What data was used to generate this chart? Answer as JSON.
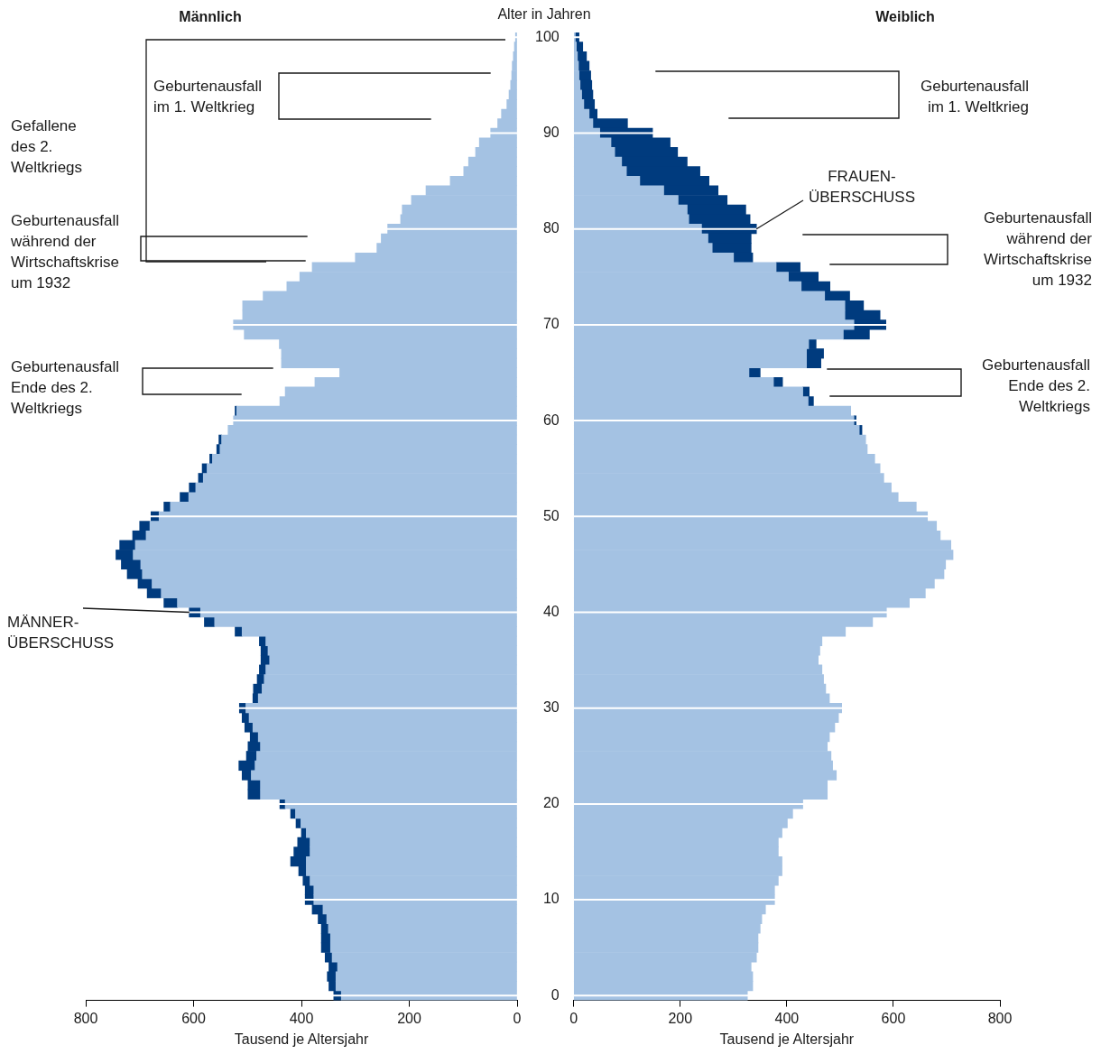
{
  "chart_data": [
    {
      "type": "bar",
      "orientation": "horizontal",
      "stacked": true,
      "title": "Männlich",
      "xlabel": "Tausend je Altersjahr",
      "tick_labels": "x",
      "grid": "y",
      "xlim": [
        800,
        0
      ],
      "xticks": [
        800,
        600,
        400,
        200,
        0
      ],
      "categories": [
        "100",
        null,
        null,
        null,
        null,
        null,
        null,
        null,
        null,
        null,
        "90",
        null,
        null,
        null,
        null,
        null,
        null,
        null,
        null,
        null,
        "80",
        null,
        null,
        null,
        null,
        null,
        null,
        null,
        null,
        null,
        "70",
        null,
        null,
        null,
        null,
        null,
        null,
        null,
        null,
        null,
        "60",
        null,
        null,
        null,
        null,
        null,
        null,
        null,
        null,
        null,
        "50",
        null,
        null,
        null,
        null,
        null,
        null,
        null,
        null,
        null,
        "40",
        null,
        null,
        null,
        null,
        null,
        null,
        null,
        null,
        null,
        "30",
        null,
        null,
        null,
        null,
        null,
        null,
        null,
        null,
        null,
        "20",
        null,
        null,
        null,
        null,
        null,
        null,
        null,
        null,
        null,
        "10",
        null,
        null,
        null,
        null,
        null,
        null,
        null,
        null,
        null,
        "0"
      ],
      "series": [
        {
          "color": "#a4c2e3",
          "values": [
            3,
            5,
            7,
            9,
            10,
            12,
            15,
            19,
            29,
            36,
            49,
            70,
            77,
            90,
            99,
            124,
            169,
            196,
            213,
            216,
            240,
            252,
            260,
            300,
            380,
            403,
            427,
            471,
            509,
            509,
            526,
            506,
            441,
            437,
            437,
            329,
            375,
            430,
            440,
            520,
            526,
            536,
            548,
            551,
            565,
            575,
            582,
            596,
            609,
            643,
            664,
            681,
            688,
            708,
            712,
            698,
            695,
            677,
            660,
            630,
            587,
            561,
            510,
            466,
            462,
            459,
            466,
            469,
            473,
            480,
            503,
            497,
            490,
            480,
            476,
            483,
            486,
            493,
            476,
            476,
            430,
            411,
            401,
            391,
            384,
            384,
            391,
            391,
            384,
            377,
            377,
            360,
            353,
            350,
            346,
            346,
            343,
            333,
            336,
            336,
            326
          ]
        },
        {
          "color": "#003b7e",
          "values": [
            null,
            null,
            null,
            null,
            null,
            null,
            null,
            null,
            null,
            null,
            null,
            null,
            null,
            null,
            null,
            null,
            null,
            null,
            null,
            null,
            null,
            null,
            null,
            null,
            null,
            null,
            null,
            null,
            null,
            null,
            null,
            null,
            null,
            null,
            null,
            null,
            null,
            null,
            null,
            3,
            null,
            null,
            5,
            6,
            5,
            9,
            9,
            12,
            16,
            12,
            15,
            19,
            25,
            29,
            32,
            36,
            28,
            26,
            26,
            25,
            21,
            19,
            13,
            12,
            13,
            16,
            12,
            13,
            16,
            10,
            12,
            13,
            15,
            15,
            23,
            19,
            30,
            17,
            23,
            23,
            10,
            9,
            9,
            9,
            23,
            30,
            29,
            14,
            13,
            16,
            16,
            20,
            16,
            13,
            17,
            17,
            13,
            16,
            16,
            13,
            14
          ]
        }
      ],
      "annotations": [
        "Gefallene des 2. Weltkriegs",
        "Geburtenausfall im 1. Weltkrieg",
        "Geburtenausfall während der Wirtschaftskrise um 1932",
        "Geburtenausfall Ende des 2. Weltkriegs",
        {
          "text": "MÄNNER-ÜBERSCHUSS",
          "x": 608,
          "y": "40"
        }
      ]
    },
    {
      "type": "bar",
      "orientation": "horizontal",
      "stacked": true,
      "title": "Weiblich",
      "xlabel": "Tausend je Altersjahr",
      "ylabel": "Alter in Jahren",
      "grid": "y",
      "xlim": [
        0,
        800
      ],
      "xticks": [
        0,
        200,
        400,
        600,
        800
      ],
      "categories": [
        "100",
        null,
        null,
        null,
        null,
        null,
        null,
        null,
        null,
        null,
        "90",
        null,
        null,
        null,
        null,
        null,
        null,
        null,
        null,
        null,
        "80",
        null,
        null,
        null,
        null,
        null,
        null,
        null,
        null,
        null,
        "70",
        null,
        null,
        null,
        null,
        null,
        null,
        null,
        null,
        null,
        "60",
        null,
        null,
        null,
        null,
        null,
        null,
        null,
        null,
        null,
        "50",
        null,
        null,
        null,
        null,
        null,
        null,
        null,
        null,
        null,
        "40",
        null,
        null,
        null,
        null,
        null,
        null,
        null,
        null,
        null,
        "30",
        null,
        null,
        null,
        null,
        null,
        null,
        null,
        null,
        null,
        "20",
        null,
        null,
        null,
        null,
        null,
        null,
        null,
        null,
        null,
        "10",
        null,
        null,
        null,
        null,
        null,
        null,
        null,
        null,
        null,
        "0"
      ],
      "series": [
        {
          "color": "#a4c2e3",
          "values": [
            3,
            5,
            7,
            9,
            10,
            12,
            15,
            19,
            29,
            36,
            49,
            70,
            77,
            90,
            99,
            124,
            169,
            196,
            213,
            216,
            240,
            252,
            260,
            300,
            380,
            403,
            427,
            471,
            509,
            509,
            526,
            506,
            441,
            437,
            437,
            329,
            375,
            430,
            440,
            520,
            526,
            536,
            548,
            551,
            565,
            575,
            582,
            596,
            609,
            643,
            664,
            681,
            688,
            708,
            712,
            698,
            695,
            677,
            660,
            630,
            587,
            561,
            510,
            466,
            462,
            459,
            466,
            469,
            473,
            480,
            503,
            497,
            490,
            480,
            476,
            483,
            486,
            493,
            476,
            476,
            430,
            411,
            401,
            391,
            384,
            384,
            391,
            391,
            384,
            377,
            377,
            360,
            353,
            350,
            346,
            346,
            343,
            333,
            336,
            336,
            326
          ]
        },
        {
          "color": "#003b7e",
          "values": [
            7,
            12,
            17,
            20,
            22,
            22,
            21,
            20,
            15,
            65,
            99,
            111,
            118,
            123,
            138,
            130,
            102,
            92,
            110,
            115,
            103,
            81,
            73,
            36,
            45,
            56,
            54,
            47,
            35,
            66,
            60,
            49,
            14,
            32,
            27,
            21,
            17,
            12,
            10,
            null,
            4,
            5,
            null,
            null,
            null,
            null,
            null,
            null,
            null,
            null,
            null,
            null,
            null,
            null,
            null,
            null,
            null,
            null,
            null,
            null,
            null,
            null,
            null,
            null,
            null,
            null,
            null,
            null,
            null,
            null,
            null,
            null,
            null,
            null,
            null,
            null,
            null,
            null,
            null,
            null,
            null,
            null,
            null,
            null,
            null,
            null,
            null,
            null,
            null,
            null,
            null,
            null,
            null,
            null,
            null,
            null,
            null,
            null,
            null,
            null,
            null
          ]
        }
      ],
      "annotations": [
        "Geburtenausfall im 1. Weltkrieg",
        {
          "text": "FRAUEN-ÜBERSCHUSS",
          "x": 343,
          "y": "80"
        },
        "Geburtenausfall während der Wirtschaftskrise um 1932",
        "Geburtenausfall Ende des 2. Weltkriegs"
      ]
    }
  ]
}
